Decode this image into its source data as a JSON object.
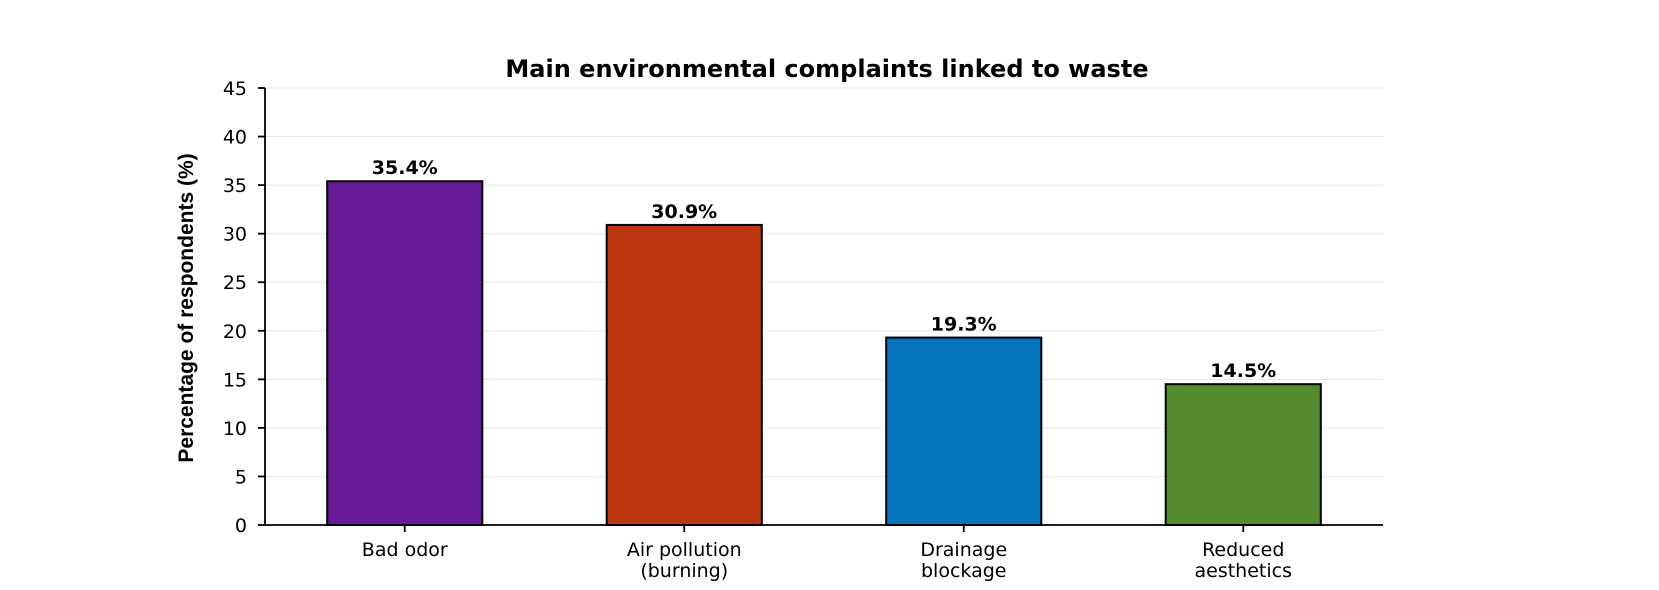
{
  "chart_data": {
    "type": "bar",
    "title": "Main environmental complaints linked to waste",
    "xlabel": "",
    "ylabel": "Percentage of respondents (%)",
    "categories": [
      [
        "Bad odor"
      ],
      [
        "Air pollution",
        "(burning)"
      ],
      [
        "Drainage",
        "blockage"
      ],
      [
        "Reduced",
        "aesthetics"
      ]
    ],
    "values": [
      35.4,
      30.9,
      19.3,
      14.5
    ],
    "value_labels": [
      "35.4%",
      "30.9%",
      "19.3%",
      "14.5%"
    ],
    "colors": [
      "#681b99",
      "#bc370f",
      "#0575bd",
      "#548b2f"
    ],
    "ylim": [
      0,
      45
    ],
    "yticks": [
      0,
      5,
      10,
      15,
      20,
      25,
      30,
      35,
      40,
      45
    ],
    "grid": true,
    "legend": null
  }
}
